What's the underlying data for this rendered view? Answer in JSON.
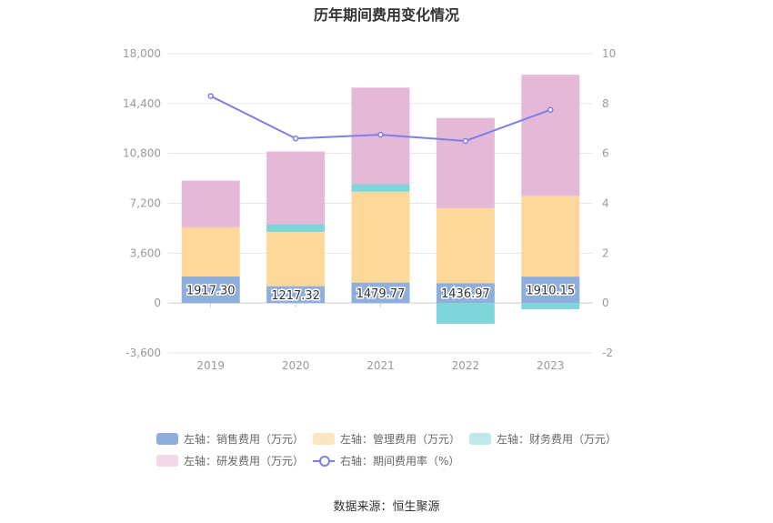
{
  "chart_data": {
    "type": "bar",
    "title": "历年期间费用变化情况",
    "categories": [
      "2019",
      "2020",
      "2021",
      "2022",
      "2023"
    ],
    "left_axis": {
      "ticks": [
        "-3,600",
        "0",
        "3,600",
        "7,200",
        "10,800",
        "14,400",
        "18,000"
      ],
      "ylim": [
        -3600,
        18000
      ]
    },
    "right_axis": {
      "ticks": [
        "-2",
        "0",
        "2",
        "4",
        "6",
        "8",
        "10"
      ],
      "ylim": [
        -2,
        10
      ]
    },
    "series": [
      {
        "name": "左轴：销售费用（万元）",
        "kind": "bar",
        "color": "#8eaedc",
        "values": [
          1917.3,
          1217.32,
          1479.77,
          1436.97,
          1910.15
        ],
        "labels": [
          "1917.30",
          "1217.32",
          "1479.77",
          "1436.97",
          "1910.15"
        ]
      },
      {
        "name": "左轴：管理费用（万元）",
        "kind": "bar",
        "color": "#fdd89b",
        "values": [
          3550,
          3920,
          6550,
          5420,
          5820
        ]
      },
      {
        "name": "左轴：财务费用（万元）",
        "kind": "bar",
        "color": "#7fd6da",
        "values": [
          0,
          550,
          550,
          -1500,
          -450
        ]
      },
      {
        "name": "左轴：研发费用（万元）",
        "kind": "bar",
        "color": "#e6b8d8",
        "values": [
          3370,
          5250,
          6970,
          6500,
          8750
        ]
      },
      {
        "name": "右轴：期间费用率（%）",
        "kind": "line",
        "color": "#7b7fe8",
        "values": [
          8.3,
          6.6,
          6.75,
          6.5,
          7.75
        ]
      }
    ]
  },
  "source": "数据来源：恒生聚源"
}
